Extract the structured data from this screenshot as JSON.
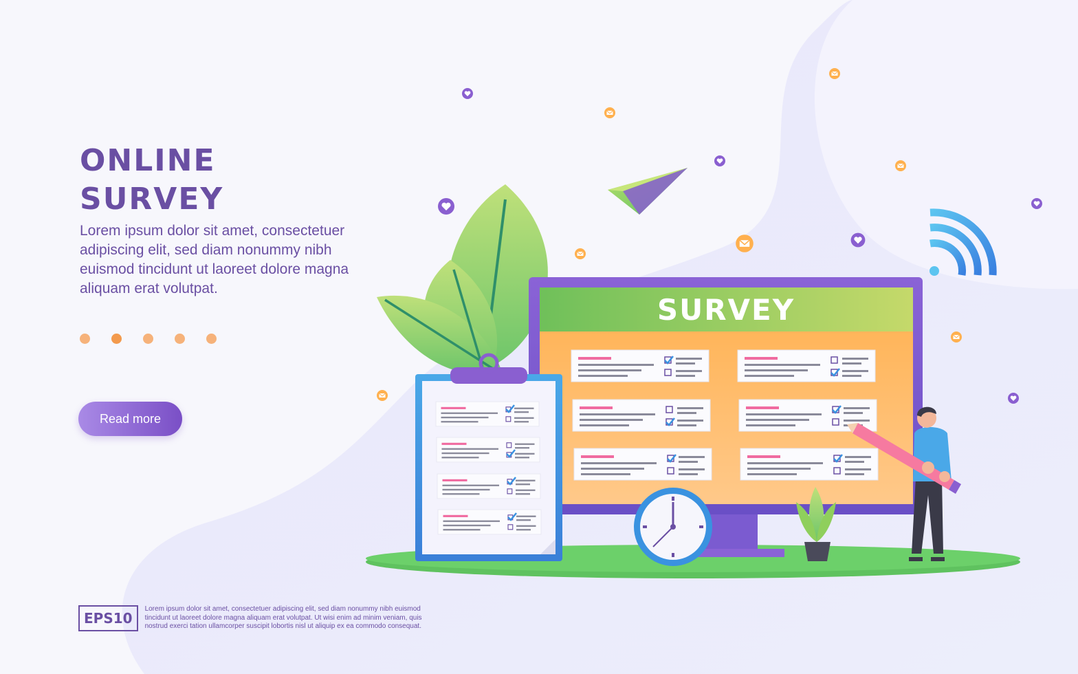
{
  "hero": {
    "title_line1": "ONLINE",
    "title_line2": "SURVEY",
    "description": "Lorem ipsum dolor sit amet, consectetuer adipiscing elit, sed diam nonummy nibh euismod tincidunt ut laoreet dolore magna aliquam erat volutpat.",
    "button_label": "Read more",
    "carousel_total": 5,
    "carousel_active_index": 1
  },
  "illustration": {
    "monitor_title": "SURVEY",
    "icons": [
      "heart-icon",
      "mail-icon",
      "paper-plane-icon",
      "wifi-icon",
      "clock-icon",
      "pencil-icon",
      "leaf-icon",
      "plant-icon",
      "clipboard-icon"
    ]
  },
  "footer": {
    "badge": "EPS10",
    "text": "Lorem ipsum dolor sit amet, consectetuer adipiscing elit, sed diam nonummy nibh euismod tincidunt ut laoreet dolore magna aliquam erat volutpat. Ut wisi enim ad minim veniam, quis nostrud exerci tation ullamcorper suscipit lobortis nisl ut aliquip ex ea commodo consequat."
  },
  "colors": {
    "accent_purple": "#6a4fa3",
    "button_start": "#a98ae6",
    "button_end": "#7a4fc6",
    "dot": "#f6b27a",
    "monitor_frame": "#7b5bd0",
    "screen_orange": "#ffb45a",
    "screen_header": "#8fcf5c",
    "ground": "#5fc25f",
    "wifi": "#3a92e0"
  }
}
